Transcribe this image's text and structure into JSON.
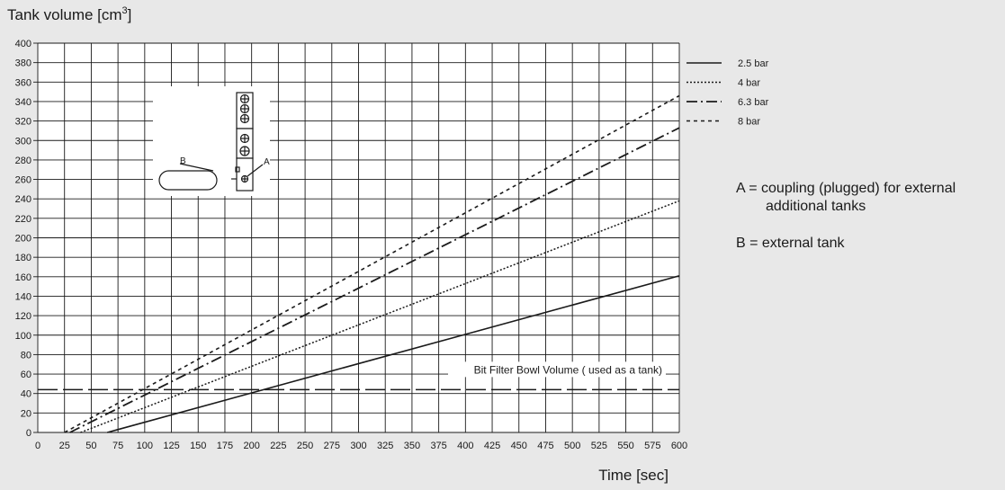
{
  "chart_data": {
    "type": "line",
    "title": "",
    "ylabel_main": "Tank volume [cm",
    "ylabel_sup": "3",
    "ylabel_close": "]",
    "xlabel": "Time [sec]",
    "xlim": [
      0,
      600
    ],
    "ylim": [
      0,
      400
    ],
    "xticks": [
      0,
      25,
      50,
      75,
      100,
      125,
      150,
      175,
      200,
      225,
      250,
      275,
      300,
      325,
      350,
      375,
      400,
      425,
      450,
      475,
      500,
      525,
      550,
      575,
      600
    ],
    "yticks": [
      0,
      20,
      40,
      60,
      80,
      100,
      120,
      140,
      160,
      180,
      200,
      220,
      240,
      260,
      280,
      300,
      320,
      340,
      360,
      380,
      400
    ],
    "grid": true,
    "legend_position": "right",
    "series": [
      {
        "name": "2.5 bar",
        "style": "solid",
        "points": [
          [
            65,
            0
          ],
          [
            600,
            161
          ]
        ]
      },
      {
        "name": "4 bar",
        "style": "dotted",
        "points": [
          [
            40,
            0
          ],
          [
            600,
            238
          ]
        ]
      },
      {
        "name": "6.3 bar",
        "style": "dashdot",
        "points": [
          [
            30,
            0
          ],
          [
            600,
            313
          ]
        ]
      },
      {
        "name": "8 bar",
        "style": "dashed",
        "points": [
          [
            25,
            0
          ],
          [
            600,
            346
          ]
        ]
      }
    ],
    "reference_line": {
      "y": 44,
      "label": "Bit Filter Bowl Volume ( used as a tank)"
    }
  },
  "diagram": {
    "label_a": "A",
    "label_b": "B"
  },
  "notes": {
    "a_line1": "A = coupling (plugged) for external",
    "a_line2": "additional tanks",
    "b_line": "B = external tank"
  },
  "colors": {
    "background": "#e8e8e8",
    "plot": "#ffffff",
    "ink": "#1a1a1a"
  }
}
